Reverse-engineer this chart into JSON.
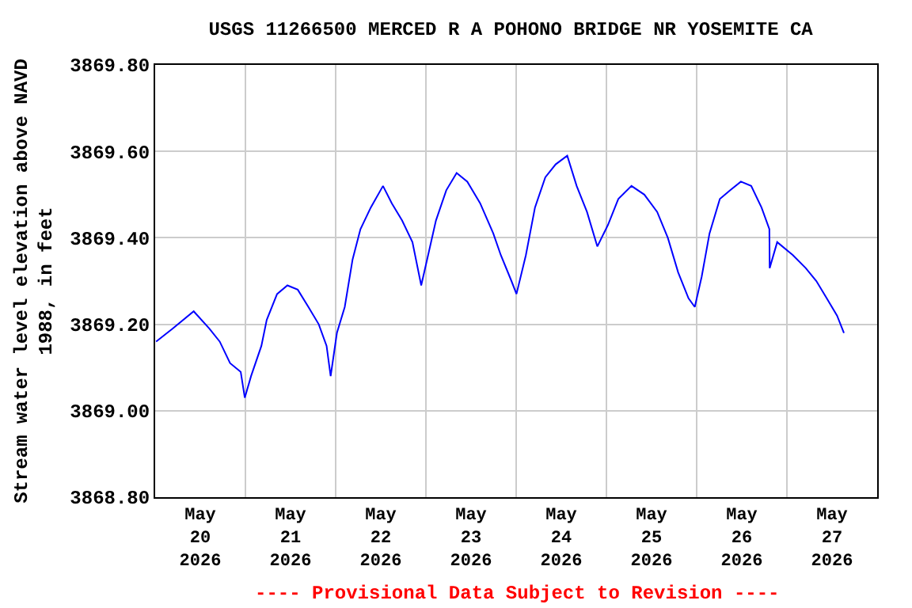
{
  "chart_data": {
    "type": "line",
    "title": "USGS 11266500 MERCED R A POHONO BRIDGE NR YOSEMITE CA",
    "ylabel": "Stream water level elevation above NAVD\n1988, in feet",
    "annotations": [
      "---- Provisional Data Subject to Revision ----"
    ],
    "x": [
      "2026-05-20T00:15",
      "2026-05-20T04:40",
      "2026-05-20T10:15",
      "2026-05-20T14:25",
      "2026-05-20T17:10",
      "2026-05-20T19:55",
      "2026-05-20T22:45",
      "2026-05-20T23:50",
      "2026-05-21T01:30",
      "2026-05-21T04:15",
      "2026-05-21T05:40",
      "2026-05-21T08:25",
      "2026-05-21T11:10",
      "2026-05-21T13:55",
      "2026-05-21T16:45",
      "2026-05-21T19:30",
      "2026-05-21T21:35",
      "2026-05-21T22:40",
      "2026-05-22T00:20",
      "2026-05-22T02:25",
      "2026-05-22T04:30",
      "2026-05-22T06:35",
      "2026-05-22T09:20",
      "2026-05-22T12:35",
      "2026-05-22T14:55",
      "2026-05-22T17:40",
      "2026-05-22T20:25",
      "2026-05-22T22:45",
      "2026-05-23T00:35",
      "2026-05-23T02:40",
      "2026-05-23T05:25",
      "2026-05-23T08:10",
      "2026-05-23T11:00",
      "2026-05-23T14:25",
      "2026-05-23T17:55",
      "2026-05-23T19:55",
      "2026-05-23T22:45",
      "2026-05-24T00:05",
      "2026-05-24T02:35",
      "2026-05-24T05:00",
      "2026-05-24T07:45",
      "2026-05-24T10:30",
      "2026-05-24T13:35",
      "2026-05-24T16:05",
      "2026-05-24T18:50",
      "2026-05-24T21:35",
      "2026-05-25T00:25",
      "2026-05-25T03:10",
      "2026-05-25T06:40",
      "2026-05-25T10:05",
      "2026-05-25T13:30",
      "2026-05-25T16:20",
      "2026-05-25T19:05",
      "2026-05-25T21:50",
      "2026-05-25T23:30",
      "2026-05-26T01:20",
      "2026-05-26T03:25",
      "2026-05-26T06:10",
      "2026-05-26T08:55",
      "2026-05-26T11:45",
      "2026-05-26T14:30",
      "2026-05-26T17:15",
      "2026-05-26T19:20",
      "2026-05-26T19:25",
      "2026-05-26T21:25",
      "2026-05-27T01:35",
      "2026-05-27T05:00",
      "2026-05-27T07:50",
      "2026-05-27T10:35",
      "2026-05-27T13:20",
      "2026-05-27T15:10"
    ],
    "series": [
      {
        "color": "#0000ff",
        "values": [
          3869.16,
          3869.19,
          3869.23,
          3869.19,
          3869.16,
          3869.11,
          3869.09,
          3869.03,
          3869.08,
          3869.15,
          3869.21,
          3869.27,
          3869.29,
          3869.28,
          3869.24,
          3869.2,
          3869.15,
          3869.08,
          3869.18,
          3869.24,
          3869.35,
          3869.42,
          3869.47,
          3869.52,
          3869.48,
          3869.44,
          3869.39,
          3869.29,
          3869.36,
          3869.44,
          3869.51,
          3869.55,
          3869.53,
          3869.48,
          3869.41,
          3869.36,
          3869.3,
          3869.27,
          3869.36,
          3869.47,
          3869.54,
          3869.57,
          3869.59,
          3869.52,
          3869.46,
          3869.38,
          3869.43,
          3869.49,
          3869.52,
          3869.5,
          3869.46,
          3869.4,
          3869.32,
          3869.26,
          3869.24,
          3869.31,
          3869.41,
          3869.49,
          3869.51,
          3869.53,
          3869.52,
          3869.47,
          3869.42,
          3869.33,
          3869.39,
          3869.36,
          3869.33,
          3869.3,
          3869.26,
          3869.22,
          3869.18
        ]
      }
    ],
    "xlim": [
      "2026-05-20T00:00",
      "2026-05-28T00:00"
    ],
    "xticks": [
      {
        "value": "2026-05-20T00:00",
        "label": null
      },
      {
        "value": "2026-05-20T12:00",
        "label": "May\n20\n2026"
      },
      {
        "value": "2026-05-21T00:00",
        "label": null
      },
      {
        "value": "2026-05-21T12:00",
        "label": "May\n21\n2026"
      },
      {
        "value": "2026-05-22T00:00",
        "label": null
      },
      {
        "value": "2026-05-22T12:00",
        "label": "May\n22\n2026"
      },
      {
        "value": "2026-05-23T00:00",
        "label": null
      },
      {
        "value": "2026-05-23T12:00",
        "label": "May\n23\n2026"
      },
      {
        "value": "2026-05-24T00:00",
        "label": null
      },
      {
        "value": "2026-05-24T12:00",
        "label": "May\n24\n2026"
      },
      {
        "value": "2026-05-25T00:00",
        "label": null
      },
      {
        "value": "2026-05-25T12:00",
        "label": "May\n25\n2026"
      },
      {
        "value": "2026-05-26T00:00",
        "label": null
      },
      {
        "value": "2026-05-26T12:00",
        "label": "May\n26\n2026"
      },
      {
        "value": "2026-05-27T00:00",
        "label": null
      },
      {
        "value": "2026-05-27T12:00",
        "label": "May\n27\n2026"
      },
      {
        "value": "2026-05-28T00:00",
        "label": null
      }
    ],
    "ylim": [
      3868.8,
      3869.8
    ],
    "yticks": [
      {
        "value": 3868.8,
        "label": "3868.80"
      },
      {
        "value": 3869.0,
        "label": "3869.00"
      },
      {
        "value": 3869.2,
        "label": "3869.20"
      },
      {
        "value": 3869.4,
        "label": "3869.40"
      },
      {
        "value": 3869.6,
        "label": "3869.60"
      },
      {
        "value": 3869.8,
        "label": "3869.80"
      }
    ],
    "grid": true,
    "marker": "none",
    "line_style": "solid"
  }
}
